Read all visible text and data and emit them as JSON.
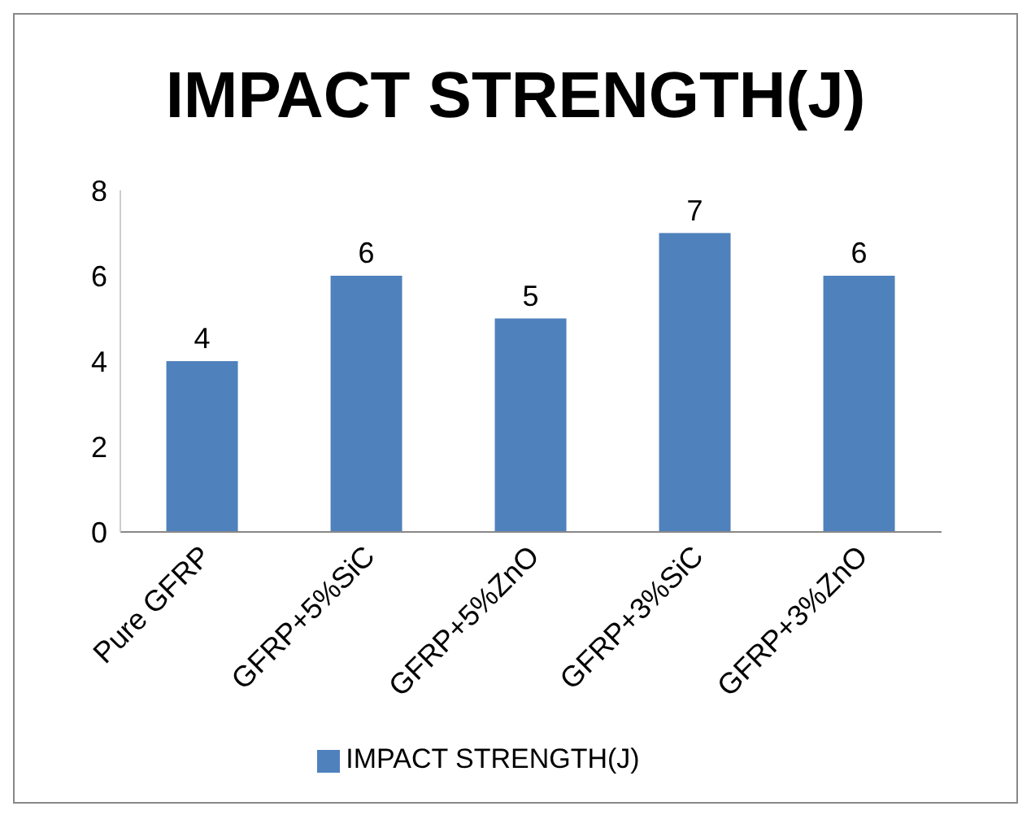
{
  "chart_data": {
    "type": "bar",
    "title": "IMPACT STRENGTH(J)",
    "categories": [
      "Pure GFRP",
      "GFRP+5%SiC",
      "GFRP+5%ZnO",
      "GFRP+3%SiC",
      "GFRP+3%ZnO"
    ],
    "series": [
      {
        "name": "IMPACT STRENGTH(J)",
        "color": "#4f81bd",
        "values": [
          4,
          6,
          5,
          7,
          6
        ]
      }
    ],
    "ylim": [
      0,
      8
    ],
    "yticks": [
      0,
      2,
      4,
      6,
      8
    ],
    "data_labels": true,
    "grid": false,
    "legend": "bottom"
  }
}
